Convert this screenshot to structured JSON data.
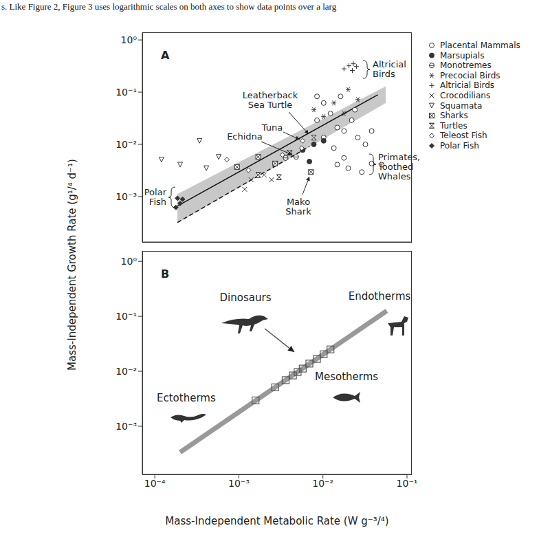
{
  "caption": "s. Like Figure 2, Figure 3 uses logarithmic scales on both axes to show data points over a larg",
  "y_label": "Mass-Independent Growth Rate (g¹/⁴ d⁻¹)",
  "chart_data": [
    {
      "type": "scatter",
      "title": "A",
      "log": true,
      "tick_labels": "y",
      "legend": "right",
      "xlim": [
        7.1e-05,
        0.112
      ],
      "ylim": [
        0.000135,
        1.4
      ],
      "yticks": [
        {
          "value": 1,
          "label": "10⁰"
        },
        {
          "value": 0.1,
          "label": "10⁻¹"
        },
        {
          "value": 0.01,
          "label": "10⁻²"
        },
        {
          "value": 0.001,
          "label": "10⁻³"
        }
      ],
      "band": {
        "x": [
          0.000186,
          0.056
        ],
        "lower": [
          0.00031,
          0.062
        ],
        "upper": [
          0.00112,
          0.13
        ],
        "color": "#c8c8c8"
      },
      "lines": [
        {
          "x": [
            0.000186,
            0.045
          ],
          "y": [
            0.00066,
            0.089
          ],
          "color": "#111111",
          "line_style": "solid"
        },
        {
          "x": [
            0.000186,
            0.0069
          ],
          "y": [
            0.00032,
            0.0091
          ],
          "color": "#111111",
          "line_style": "dashed"
        }
      ],
      "series": [
        {
          "name": "Placental Mammals",
          "marker": "open_circle",
          "color": "#333333",
          "x": [
            0.0085,
            0.0102,
            0.0123,
            0.0148,
            0.0178,
            0.022,
            0.026,
            0.032,
            0.0102,
            0.0135,
            0.0178,
            0.0085,
            0.0162,
            0.024,
            0.038,
            0.0148,
            0.02,
            0.029,
            0.05,
            0.038
          ],
          "y": [
            0.029,
            0.062,
            0.039,
            0.021,
            0.018,
            0.029,
            0.0135,
            0.01,
            0.0135,
            0.0085,
            0.0055,
            0.083,
            0.083,
            0.046,
            0.018,
            0.0041,
            0.0035,
            0.00295,
            0.0041,
            0.0043
          ]
        },
        {
          "name": "Marsupials",
          "marker": "filled_circle",
          "color": "#333333",
          "x": [
            0.00575,
            0.0078,
            0.0102,
            0.0069
          ],
          "y": [
            0.0078,
            0.01,
            0.0117,
            0.0047
          ]
        },
        {
          "name": "Monotremes",
          "marker": "circle_minus",
          "color": "#333333",
          "x": [
            0.0048,
            0.0036
          ],
          "y": [
            0.00575,
            0.0055
          ]
        },
        {
          "name": "Precocial Birds",
          "marker": "asterisk",
          "color": "#333333",
          "x": [
            0.0078,
            0.0102,
            0.0135,
            0.0178,
            0.02,
            0.026
          ],
          "y": [
            0.046,
            0.034,
            0.062,
            0.039,
            0.112,
            0.072
          ]
        },
        {
          "name": "Altricial Birds",
          "marker": "plus",
          "color": "#333333",
          "x": [
            0.0178,
            0.0204,
            0.0224,
            0.025,
            0.023
          ],
          "y": [
            0.28,
            0.32,
            0.26,
            0.31,
            0.35
          ]
        },
        {
          "name": "Crocodilians",
          "marker": "x",
          "color": "#333333",
          "x": [
            0.00117,
            0.0014,
            0.002,
            0.00245
          ],
          "y": [
            0.00138,
            0.0021,
            0.0026,
            0.0021
          ]
        },
        {
          "name": "Squamata",
          "marker": "triangle_down",
          "color": "#333333",
          "x": [
            0.00012,
            0.0002,
            0.00034,
            0.000575,
            0.00041
          ],
          "y": [
            0.0051,
            0.0041,
            0.0117,
            0.00575,
            0.0035
          ]
        },
        {
          "name": "Sharks",
          "marker": "boxed_x",
          "color": "#333333",
          "x": [
            0.00095,
            0.0017,
            0.0027,
            0.004,
            0.0072
          ],
          "y": [
            0.0037,
            0.00575,
            0.0043,
            0.0069,
            0.00295
          ]
        },
        {
          "name": "Turtles",
          "marker": "hourglass",
          "color": "#333333",
          "x": [
            0.0017,
            0.003,
            0.0078
          ],
          "y": [
            0.0026,
            0.00235,
            0.0135
          ]
        },
        {
          "name": "Teleost Fish",
          "marker": "open_diamond",
          "color": "#333333",
          "x": [
            0.00072,
            0.0013,
            0.0033,
            0.0056,
            0.00575
          ],
          "y": [
            0.0051,
            0.0032,
            0.0063,
            0.0085,
            0.0117
          ]
        },
        {
          "name": "Polar Fish",
          "marker": "filled_diamond",
          "color": "#333333",
          "x": [
            0.000186,
            0.0002,
            0.000178,
            0.000214
          ],
          "y": [
            0.00093,
            0.00074,
            0.00062,
            0.00089
          ]
        }
      ],
      "annotations": [
        "Altricial\nBirds",
        "Leatherback\nSea Turtle",
        "Tuna",
        "Echidna",
        "Primates,\nToothed\nWhales",
        "Mako\nShark",
        "Polar\nFish"
      ]
    },
    {
      "type": "scatter",
      "title": "B",
      "log": true,
      "x_label": "Mass-Independent Metabolic Rate (W g⁻³/⁴)",
      "xlim": [
        7.1e-05,
        0.112
      ],
      "ylim": [
        0.000133,
        1.55
      ],
      "xticks": [
        {
          "value": 0.0001,
          "label": "10⁻⁴"
        },
        {
          "value": 0.001,
          "label": "10⁻³"
        },
        {
          "value": 0.01,
          "label": "10⁻²"
        },
        {
          "value": 0.1,
          "label": "10⁻¹"
        }
      ],
      "yticks": [
        {
          "value": 1,
          "label": "10⁰"
        },
        {
          "value": 0.1,
          "label": "10⁻¹"
        },
        {
          "value": 0.01,
          "label": "10⁻²"
        },
        {
          "value": 0.001,
          "label": "10⁻³"
        }
      ],
      "lines": [
        {
          "x": [
            0.0002,
            0.0575
          ],
          "y": [
            0.000335,
            0.126
          ],
          "color": "#999999",
          "line_style": "solid"
        }
      ],
      "series": [
        {
          "name": "Dinosaurs",
          "marker": "open_square",
          "color": "#555555",
          "x": [
            0.00158,
            0.0027,
            0.0036,
            0.0044,
            0.005,
            0.00575,
            0.0069,
            0.0085,
            0.0102,
            0.0123
          ],
          "y": [
            0.00295,
            0.0051,
            0.0069,
            0.0084,
            0.0097,
            0.0112,
            0.0138,
            0.0168,
            0.0204,
            0.025
          ]
        }
      ],
      "annotations": [
        "Endotherms",
        "Ectotherms",
        "Mesotherms"
      ]
    }
  ]
}
